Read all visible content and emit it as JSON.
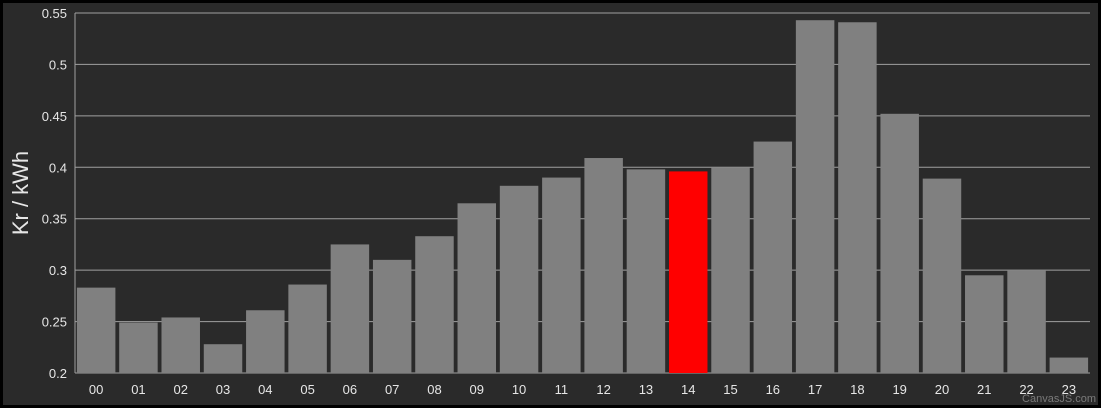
{
  "chart_data": {
    "type": "bar",
    "ylabel": "Kr / kWh",
    "xlabel": "",
    "categories": [
      "00",
      "01",
      "02",
      "03",
      "04",
      "05",
      "06",
      "07",
      "08",
      "09",
      "10",
      "11",
      "12",
      "13",
      "14",
      "15",
      "16",
      "17",
      "18",
      "19",
      "20",
      "21",
      "22",
      "23"
    ],
    "values": [
      0.283,
      0.249,
      0.254,
      0.228,
      0.261,
      0.286,
      0.325,
      0.31,
      0.333,
      0.365,
      0.382,
      0.39,
      0.409,
      0.398,
      0.396,
      0.4,
      0.425,
      0.543,
      0.541,
      0.452,
      0.389,
      0.295,
      0.3,
      0.215
    ],
    "highlight_category": "14",
    "ylim": [
      0.2,
      0.55
    ],
    "yticks": [
      "0.2",
      "0.25",
      "0.3",
      "0.35",
      "0.4",
      "0.45",
      "0.5",
      "0.55"
    ],
    "grid": true,
    "legend": "none"
  },
  "colors": {
    "background": "#2a2a2a",
    "bar": "#808080",
    "highlight": "#ff0000",
    "grid": "#a0a0a0",
    "text": "#e6e6e6"
  },
  "credit": "CanvasJS.com"
}
